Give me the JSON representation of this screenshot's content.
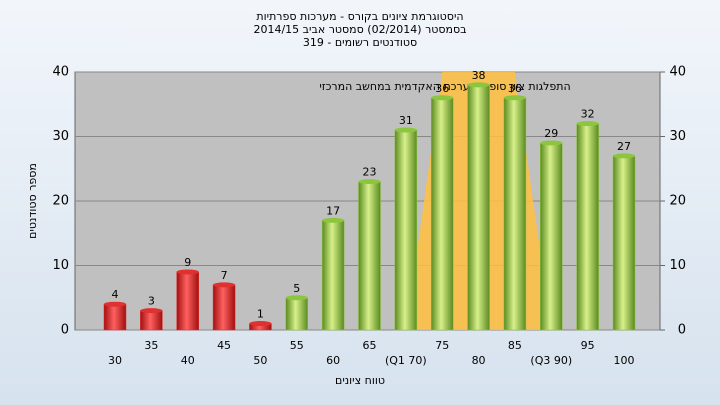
{
  "chart_data": {
    "type": "bar",
    "title_lines": [
      "היסטוגרמת ציונים בקורס - מערכות ספרתיות",
      "בסמסטר  (02/2014)  סמסטר אביב 2014/15",
      "סטודנטים רשומים - 319"
    ],
    "annotation": "התפלגות ציון סופי במערכת האקדמית במחשב המרכזי",
    "y_label": "מספר סטודנטים",
    "x_label": "טווח ציונים",
    "categories": [
      "30",
      "35",
      "40",
      "45",
      "50",
      "55",
      "60",
      "65",
      "(Q1 70)",
      "75",
      "80",
      "85",
      "(Q3 90)",
      "95",
      "100"
    ],
    "values": [
      4,
      3,
      9,
      7,
      1,
      5,
      17,
      23,
      31,
      36,
      38,
      36,
      29,
      32,
      27
    ],
    "colors": [
      "#e03030",
      "#e03030",
      "#e03030",
      "#e03030",
      "#e03030",
      "#8cc63f",
      "#8cc63f",
      "#8cc63f",
      "#8cc63f",
      "#8cc63f",
      "#8cc63f",
      "#8cc63f",
      "#8cc63f",
      "#8cc63f",
      "#8cc63f"
    ],
    "area": {
      "color": "#ffc040",
      "values": [
        null,
        null,
        null,
        null,
        null,
        null,
        null,
        null,
        0,
        40,
        40,
        40,
        0,
        null,
        null
      ]
    },
    "ylim": [
      0,
      40
    ],
    "yticks": [
      0,
      10,
      20,
      30,
      40
    ],
    "y2lim": [
      0,
      40
    ],
    "y2ticks": [
      0,
      10,
      20,
      30,
      40
    ],
    "grid": true
  }
}
